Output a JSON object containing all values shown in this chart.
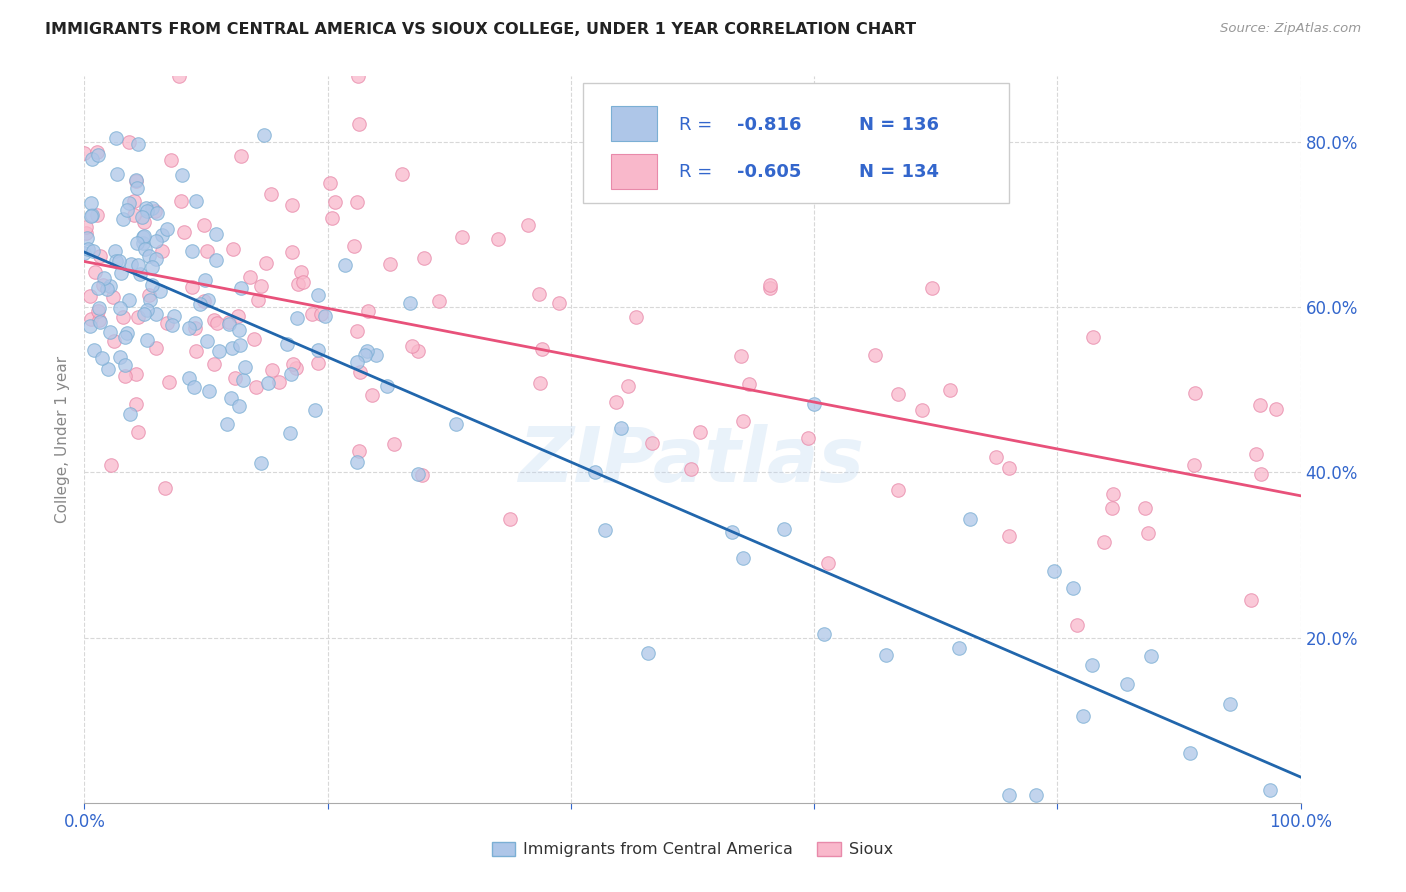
{
  "title": "IMMIGRANTS FROM CENTRAL AMERICA VS SIOUX COLLEGE, UNDER 1 YEAR CORRELATION CHART",
  "source": "Source: ZipAtlas.com",
  "ylabel": "College, Under 1 year",
  "legend_label1": "Immigrants from Central America",
  "legend_label2": "Sioux",
  "r1": -0.816,
  "n1": 136,
  "r2": -0.605,
  "n2": 134,
  "color_blue_fill": "#aec6e8",
  "color_blue_edge": "#7bafd4",
  "color_pink_fill": "#f9b8cb",
  "color_pink_edge": "#e88aaa",
  "line_color_blue": "#2166ac",
  "line_color_pink": "#e8517a",
  "text_color_blue": "#3366cc",
  "bg_color": "#ffffff",
  "watermark": "ZIPatlas",
  "ytick_labels": [
    "20.0%",
    "40.0%",
    "60.0%",
    "80.0%"
  ],
  "ytick_values": [
    0.2,
    0.4,
    0.6,
    0.8
  ],
  "xlim": [
    0.0,
    1.0
  ],
  "ylim": [
    0.0,
    0.88
  ],
  "grid_color": "#d8d8d8",
  "seed_blue": 7,
  "seed_pink": 13
}
